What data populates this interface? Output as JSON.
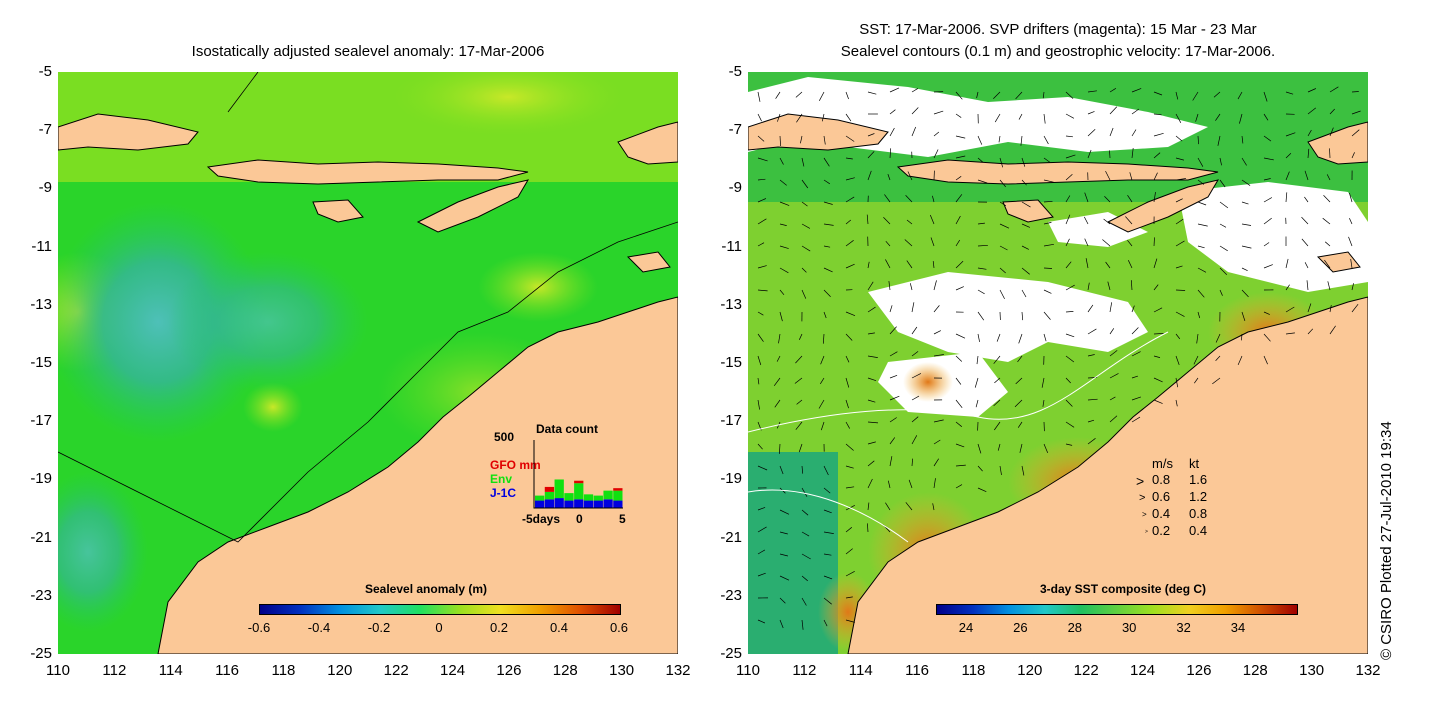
{
  "left_panel": {
    "title": "Isostatically adjusted sealevel anomaly: 17-Mar-2006",
    "colorbar": {
      "title": "Sealevel anomaly (m)",
      "ticks": [
        "-0.6",
        "-0.4",
        "-0.2",
        "0",
        "0.2",
        "0.4",
        "0.6"
      ]
    },
    "data_count": {
      "title": "Data count",
      "ymax_label": "500",
      "series_labels": [
        "GFO mm",
        "Env",
        "J-1C"
      ],
      "series_colors": [
        "#e00000",
        "#10e010",
        "#0000e0"
      ],
      "x_ticks": [
        "-5days",
        "0",
        "5"
      ],
      "bars": [
        {
          "j1c": 60,
          "env": 40,
          "gfo": 0
        },
        {
          "j1c": 70,
          "env": 60,
          "gfo": 40
        },
        {
          "j1c": 80,
          "env": 150,
          "gfo": 0
        },
        {
          "j1c": 60,
          "env": 60,
          "gfo": 0
        },
        {
          "j1c": 70,
          "env": 130,
          "gfo": 20
        },
        {
          "j1c": 60,
          "env": 50,
          "gfo": 0
        },
        {
          "j1c": 60,
          "env": 40,
          "gfo": 0
        },
        {
          "j1c": 70,
          "env": 70,
          "gfo": 0
        },
        {
          "j1c": 60,
          "env": 80,
          "gfo": 20
        }
      ]
    }
  },
  "right_panel": {
    "title_line1": "SST: 17-Mar-2006. SVP drifters (magenta): 15 Mar - 23 Mar",
    "title_line2": "Sealevel contours (0.1 m) and geostrophic velocity: 17-Mar-2006.",
    "colorbar": {
      "title": "3-day SST composite (deg C)",
      "ticks": [
        "24",
        "26",
        "28",
        "30",
        "32",
        "34"
      ]
    },
    "velocity_legend": {
      "header_ms": "m/s",
      "header_kt": "kt",
      "rows": [
        {
          "ms": "0.8",
          "kt": "1.6"
        },
        {
          "ms": "0.6",
          "kt": "1.2"
        },
        {
          "ms": "0.4",
          "kt": "0.8"
        },
        {
          "ms": "0.2",
          "kt": "0.4"
        }
      ]
    }
  },
  "y_labels": [
    "-5",
    "-7",
    "-9",
    "-11",
    "-13",
    "-15",
    "-17",
    "-19",
    "-21",
    "-23",
    "-25"
  ],
  "x_labels": [
    "110",
    "112",
    "114",
    "116",
    "118",
    "120",
    "122",
    "124",
    "126",
    "128",
    "130",
    "132"
  ],
  "copyright": "© CSIRO Plotted 27-Jul-2010 19:34",
  "colors": {
    "land": "#fbc897",
    "ocean_green": "#22d022",
    "ocean_teal": "#2fb87a",
    "ocean_yellowgreen": "#9be01a",
    "sst_orange": "#f0a020",
    "cloud": "#ffffff"
  }
}
